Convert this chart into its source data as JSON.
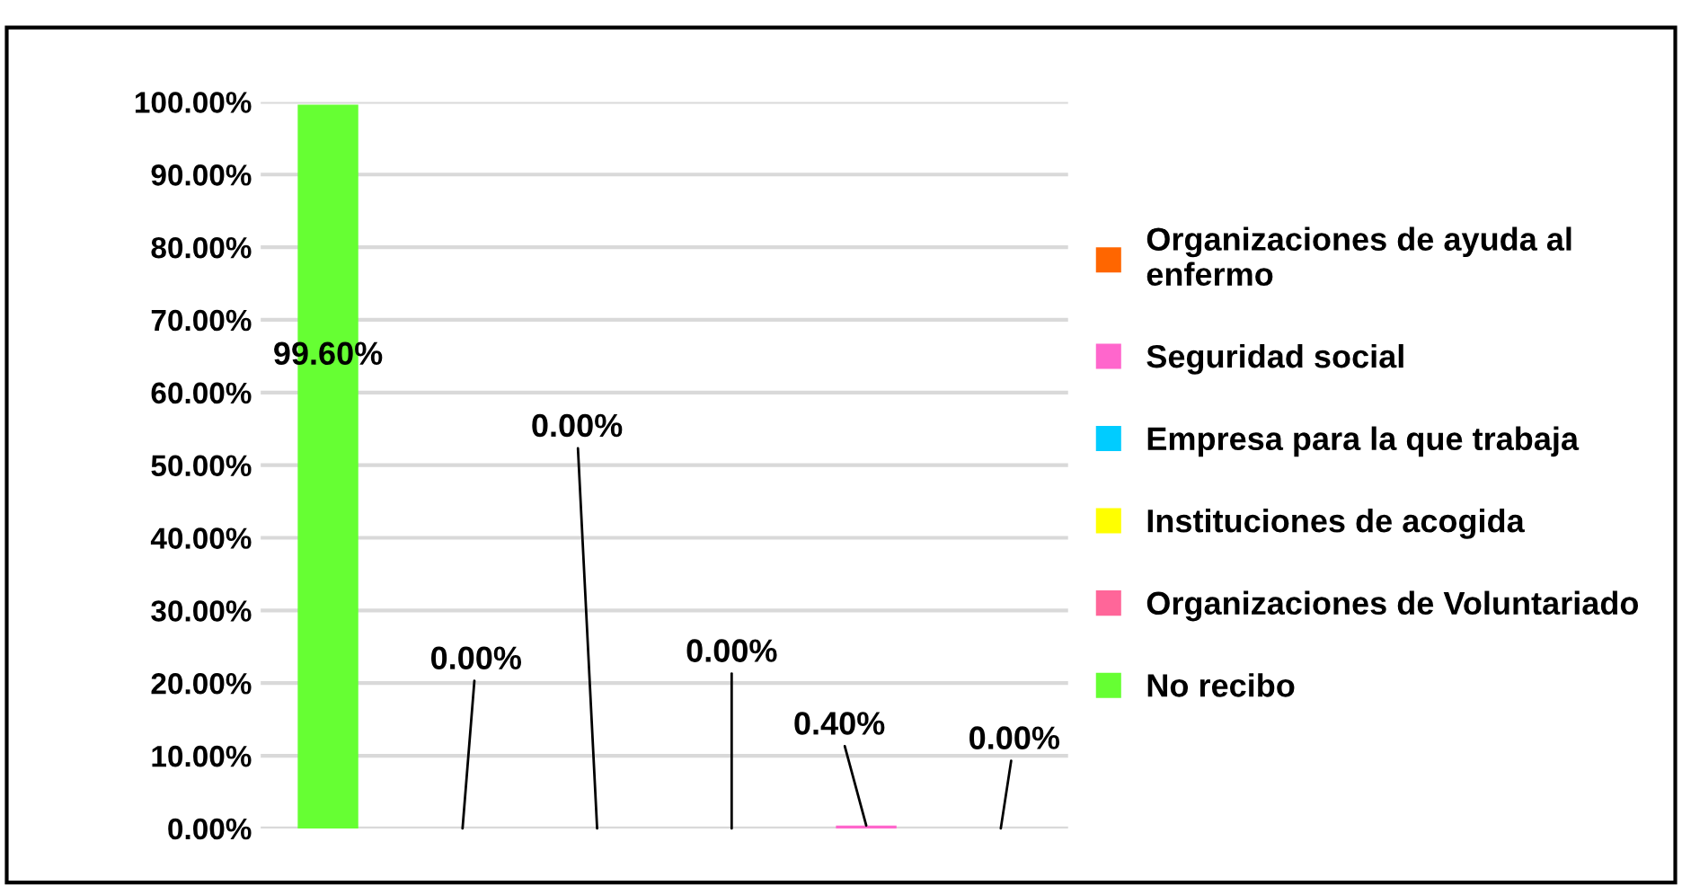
{
  "chart_data": {
    "type": "bar",
    "categories": [
      null,
      null,
      null,
      null,
      null,
      null
    ],
    "series": [
      {
        "name": "No recibo",
        "color": "#66ff33",
        "values": [
          99.6,
          null,
          null,
          null,
          null,
          null
        ],
        "value_labels": [
          "99.60%",
          null,
          null,
          null,
          null,
          null
        ]
      },
      {
        "name": "Organizaciones de Voluntariado",
        "color": "#ff6699",
        "values": [
          null,
          0,
          null,
          null,
          null,
          null
        ],
        "value_labels": [
          null,
          "0.00%",
          null,
          null,
          null,
          null
        ]
      },
      {
        "name": "Instituciones de acogida",
        "color": "#ffff00",
        "values": [
          null,
          null,
          0,
          null,
          null,
          null
        ],
        "value_labels": [
          null,
          null,
          "0.00%",
          null,
          null,
          null
        ]
      },
      {
        "name": "Empresa para la que trabaja",
        "color": "#00ccff",
        "values": [
          null,
          null,
          null,
          0,
          null,
          null
        ],
        "value_labels": [
          null,
          null,
          null,
          "0.00%",
          null,
          null
        ]
      },
      {
        "name": "Seguridad social",
        "color": "#ff66cc",
        "values": [
          null,
          null,
          null,
          null,
          0.4,
          null
        ],
        "value_labels": [
          null,
          null,
          null,
          null,
          "0.40%",
          null
        ]
      },
      {
        "name": "Organizaciones de ayuda al enfermo",
        "color": "#ff6600",
        "values": [
          null,
          null,
          null,
          null,
          null,
          0
        ],
        "value_labels": [
          null,
          null,
          null,
          null,
          null,
          "0.00%"
        ]
      }
    ],
    "ylim": [
      0,
      100
    ],
    "yticks": [
      {
        "value": 0,
        "label": "0.00%"
      },
      {
        "value": 10,
        "label": "10.00%"
      },
      {
        "value": 20,
        "label": "20.00%"
      },
      {
        "value": 30,
        "label": "30.00%"
      },
      {
        "value": 40,
        "label": "40.00%"
      },
      {
        "value": 50,
        "label": "50.00%"
      },
      {
        "value": 60,
        "label": "60.00%"
      },
      {
        "value": 70,
        "label": "70.00%"
      },
      {
        "value": 80,
        "label": "80.00%"
      },
      {
        "value": 90,
        "label": "90.00%"
      },
      {
        "value": 100,
        "label": "100.00%"
      }
    ],
    "grid": "y",
    "legend": "right"
  }
}
